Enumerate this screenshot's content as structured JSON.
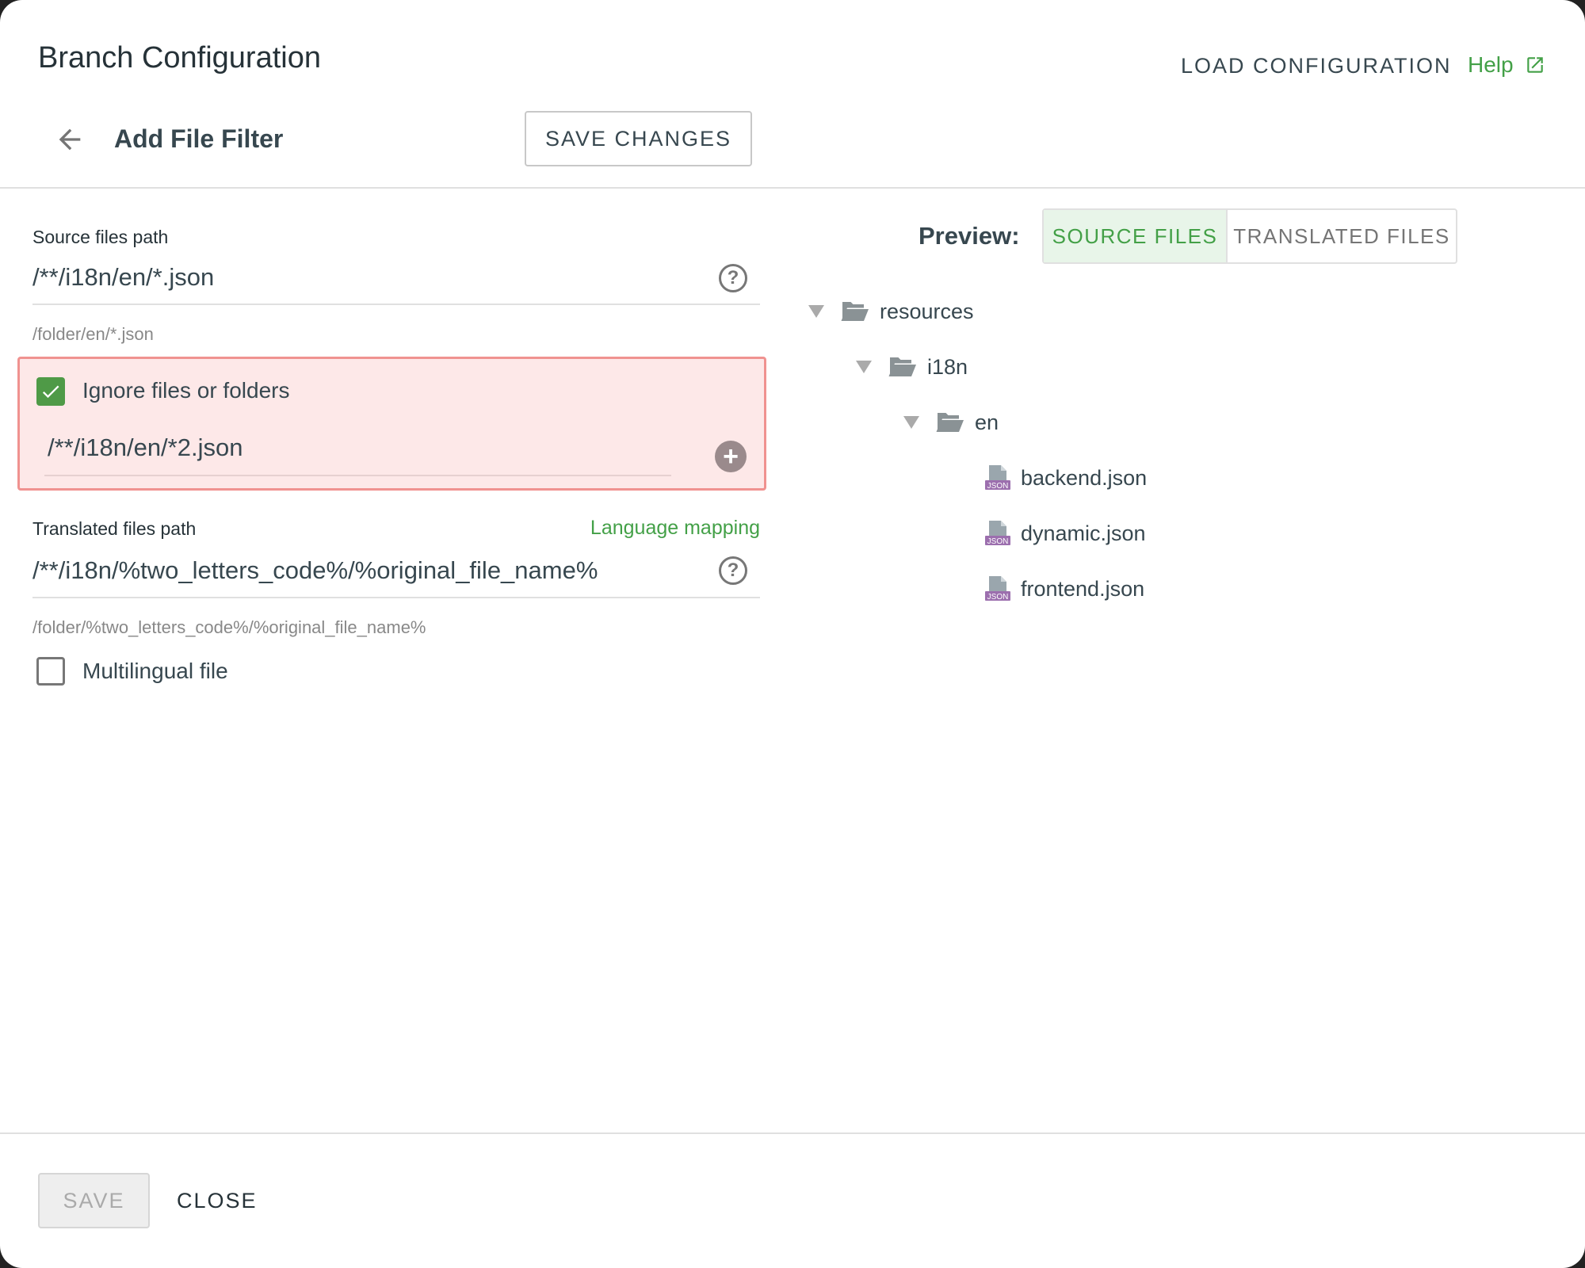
{
  "header": {
    "title": "Branch Configuration",
    "load_configuration": "LOAD CONFIGURATION",
    "help": "Help",
    "help_icon": "external-link-icon"
  },
  "subheader": {
    "title": "Add File Filter",
    "save_changes": "SAVE CHANGES",
    "back_icon": "arrow-left-icon"
  },
  "form": {
    "source_label": "Source files path",
    "source_value": "/**/i18n/en/*.json",
    "source_hint": "/folder/en/*.json",
    "ignore": {
      "label": "Ignore files or folders",
      "checked": true,
      "value": "/**/i18n/en/*2.json"
    },
    "translated_label": "Translated files path",
    "language_mapping": "Language mapping",
    "translated_value": "/**/i18n/%two_letters_code%/%original_file_name%",
    "translated_hint": "/folder/%two_letters_code%/%original_file_name%",
    "multilingual": {
      "label": "Multilingual file",
      "checked": false
    },
    "help_glyph": "?"
  },
  "preview": {
    "label": "Preview:",
    "tabs": [
      {
        "label": "SOURCE FILES",
        "active": true
      },
      {
        "label": "TRANSLATED FILES",
        "active": false
      }
    ],
    "tree": {
      "folders": [
        "resources",
        "i18n",
        "en"
      ],
      "files": [
        "backend.json",
        "dynamic.json",
        "frontend.json"
      ],
      "file_badge": "JSON"
    }
  },
  "footer": {
    "save": "SAVE",
    "close": "CLOSE"
  },
  "colors": {
    "accent": "#43a047",
    "highlight_bg": "#fde8e8",
    "highlight_border": "#f09290",
    "json_badge": "#9c6fae"
  }
}
